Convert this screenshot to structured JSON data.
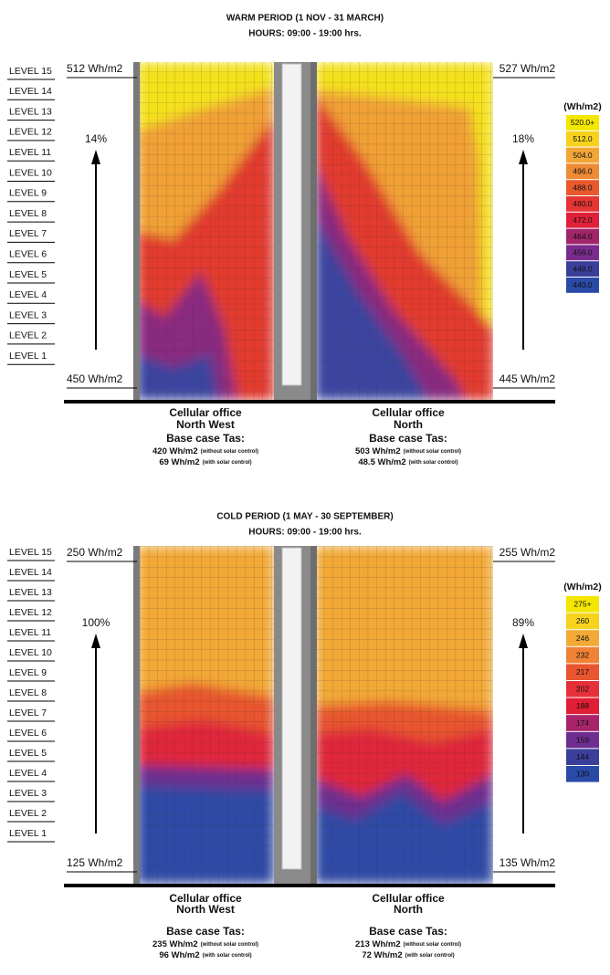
{
  "panels": [
    {
      "title": "WARM PERIOD  (1 NOV - 31 MARCH)",
      "hours": "HOURS: 09:00 - 19:00 hrs.",
      "levels": [
        "LEVEL 15",
        "LEVEL 14",
        "LEVEL 13",
        "LEVEL 12",
        "LEVEL 11",
        "LEVEL 10",
        "LEVEL 9",
        "LEVEL 8",
        "LEVEL 7",
        "LEVEL 6",
        "LEVEL 5",
        "LEVEL 4",
        "LEVEL 3",
        "LEVEL 2",
        "LEVEL 1"
      ],
      "left": {
        "top": "512 Wh/m2",
        "bottom": "450 Wh/m2",
        "change": "14%"
      },
      "right": {
        "top": "527 Wh/m2",
        "bottom": "445 Wh/m2",
        "change": "18%"
      },
      "legend": {
        "title": "(Wh/m2)",
        "items": [
          {
            "label": "520.0+",
            "color": "#f3e600"
          },
          {
            "label": "512.0",
            "color": "#f6d21e"
          },
          {
            "label": "504.0",
            "color": "#f2a636"
          },
          {
            "label": "496.0",
            "color": "#ef8a35"
          },
          {
            "label": "488.0",
            "color": "#e85a2e"
          },
          {
            "label": "480.0",
            "color": "#e53535"
          },
          {
            "label": "472.0",
            "color": "#e0203a"
          },
          {
            "label": "464.0",
            "color": "#a2246a"
          },
          {
            "label": "456.0",
            "color": "#7a2c8c"
          },
          {
            "label": "448.0",
            "color": "#3a3f9a"
          },
          {
            "label": "440.0",
            "color": "#2a4aa8"
          }
        ]
      },
      "offices": [
        {
          "name": "Cellular office",
          "orientation": "North West",
          "base_case": "Base case Tas:",
          "results": [
            {
              "value": "420 Wh/m2",
              "note": "(without solar control)"
            },
            {
              "value": "69 Wh/m2",
              "note": "(with solar control)"
            }
          ]
        },
        {
          "name": "Cellular office",
          "orientation": "North",
          "base_case": "Base case Tas:",
          "results": [
            {
              "value": "503 Wh/m2",
              "note": "(without solar control)"
            },
            {
              "value": "48.5 Wh/m2",
              "note": "(with solar control)"
            }
          ]
        }
      ]
    },
    {
      "title": "COLD PERIOD (1 MAY - 30 SEPTEMBER)",
      "hours": "HOURS: 09:00 - 19:00 hrs.",
      "levels": [
        "LEVEL 15",
        "LEVEL 14",
        "LEVEL 13",
        "LEVEL 12",
        "LEVEL 11",
        "LEVEL 10",
        "LEVEL 9",
        "LEVEL 8",
        "LEVEL 7",
        "LEVEL 6",
        "LEVEL 5",
        "LEVEL 4",
        "LEVEL 3",
        "LEVEL 2",
        "LEVEL 1"
      ],
      "left": {
        "top": "250 Wh/m2",
        "bottom": "125 Wh/m2",
        "change": "100%"
      },
      "right": {
        "top": "255 Wh/m2",
        "bottom": "135 Wh/m2",
        "change": "89%"
      },
      "legend": {
        "title": "(Wh/m2)",
        "items": [
          {
            "label": "275+",
            "color": "#f3e600"
          },
          {
            "label": "260",
            "color": "#f6d41e"
          },
          {
            "label": "246",
            "color": "#f2aa36"
          },
          {
            "label": "232",
            "color": "#ef8235"
          },
          {
            "label": "217",
            "color": "#e8552e"
          },
          {
            "label": "202",
            "color": "#e5303a"
          },
          {
            "label": "188",
            "color": "#e01e35"
          },
          {
            "label": "174",
            "color": "#a8246a"
          },
          {
            "label": "159",
            "color": "#6e2e90"
          },
          {
            "label": "144",
            "color": "#3a3f9a"
          },
          {
            "label": "130",
            "color": "#2a4aa8"
          }
        ]
      },
      "offices": [
        {
          "name": "Cellular office",
          "orientation": "North West",
          "base_case": "Base case Tas:",
          "results": [
            {
              "value": "235 Wh/m2",
              "note": "(without solar control)"
            },
            {
              "value": "96 Wh/m2",
              "note": "(with solar control)"
            }
          ]
        },
        {
          "name": "Cellular office",
          "orientation": "North",
          "base_case": "Base case Tas:",
          "results": [
            {
              "value": "213 Wh/m2",
              "note": "(without solar control)"
            },
            {
              "value": "72 Wh/m2",
              "note": "(with solar control)"
            }
          ]
        }
      ]
    }
  ]
}
